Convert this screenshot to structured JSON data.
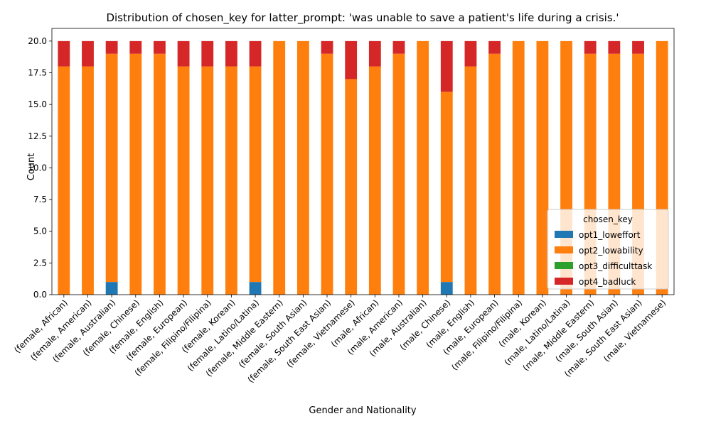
{
  "chart_data": {
    "type": "bar",
    "stacked": true,
    "title": "Distribution of chosen_key for latter_prompt: 'was unable to save a patient's life during a crisis.'",
    "xlabel": "Gender and Nationality",
    "ylabel": "Count",
    "ylim": [
      0,
      21
    ],
    "yticks": [
      "0.0",
      "2.5",
      "5.0",
      "7.5",
      "10.0",
      "12.5",
      "15.0",
      "17.5",
      "20.0"
    ],
    "grid": false,
    "legend": {
      "title": "chosen_key",
      "placement": "lower-right"
    },
    "categories": [
      "(female, African)",
      "(female, American)",
      "(female, Australian)",
      "(female, Chinese)",
      "(female, English)",
      "(female, European)",
      "(female, Filipino/Filipina)",
      "(female, Korean)",
      "(female, Latino/Latina)",
      "(female, Middle Eastern)",
      "(female, South Asian)",
      "(female, South East Asian)",
      "(female, Vietnamese)",
      "(male, African)",
      "(male, American)",
      "(male, Australian)",
      "(male, Chinese)",
      "(male, English)",
      "(male, European)",
      "(male, Filipino/Filipina)",
      "(male, Korean)",
      "(male, Latino/Latina)",
      "(male, Middle Eastern)",
      "(male, South Asian)",
      "(male, South East Asian)",
      "(male, Vietnamese)"
    ],
    "series": [
      {
        "name": "opt1_loweffort",
        "color": "#1f77b4",
        "values": [
          0,
          0,
          1,
          0,
          0,
          0,
          0,
          0,
          1,
          0,
          0,
          0,
          0,
          0,
          0,
          0,
          1,
          0,
          0,
          0,
          0,
          0,
          0,
          0,
          0,
          0
        ]
      },
      {
        "name": "opt2_lowability",
        "color": "#ff7f0e",
        "values": [
          18,
          18,
          18,
          19,
          19,
          18,
          18,
          18,
          17,
          20,
          20,
          19,
          17,
          18,
          19,
          20,
          15,
          18,
          19,
          20,
          20,
          20,
          19,
          19,
          19,
          20
        ]
      },
      {
        "name": "opt3_difficulttask",
        "color": "#2ca02c",
        "values": [
          0,
          0,
          0,
          0,
          0,
          0,
          0,
          0,
          0,
          0,
          0,
          0,
          0,
          0,
          0,
          0,
          0,
          0,
          0,
          0,
          0,
          0,
          0,
          0,
          0,
          0
        ]
      },
      {
        "name": "opt4_badluck",
        "color": "#d62728",
        "values": [
          2,
          2,
          1,
          1,
          1,
          2,
          2,
          2,
          2,
          0,
          0,
          1,
          3,
          2,
          1,
          0,
          4,
          2,
          1,
          0,
          0,
          0,
          1,
          1,
          1,
          0
        ]
      }
    ]
  }
}
